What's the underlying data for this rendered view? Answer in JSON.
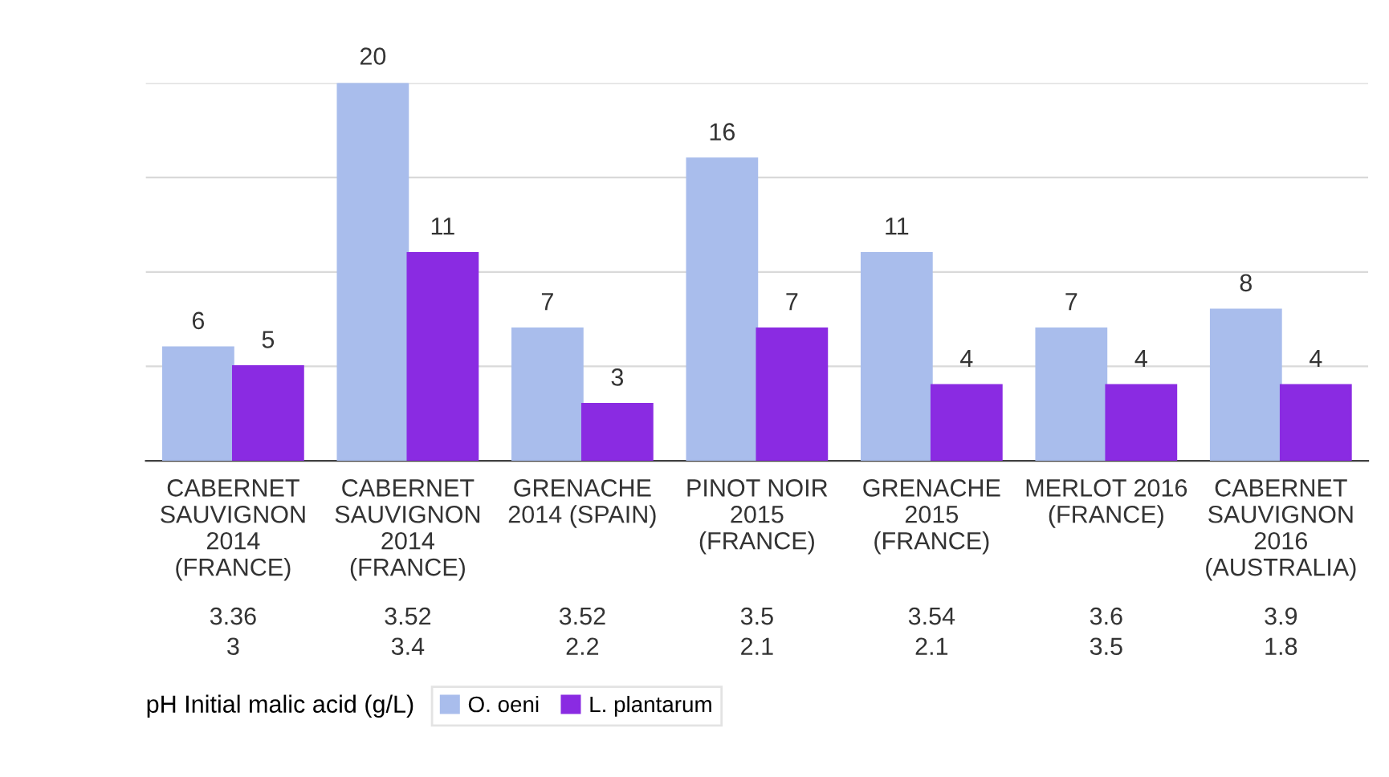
{
  "chart_data": {
    "type": "bar",
    "categories": [
      "CABERNET\nSAUVIGNON\n2014\n(FRANCE)",
      "CABERNET\nSAUVIGNON\n2014\n(FRANCE)",
      "GRENACHE\n2014 (SPAIN)",
      "PINOT NOIR\n2015\n(FRANCE)",
      "GRENACHE\n2015\n(FRANCE)",
      "MERLOT 2016\n(FRANCE)",
      "CABERNET\nSAUVIGNON\n2016\n(AUSTRALIA)"
    ],
    "series": [
      {
        "name": "O. oeni",
        "color": "#a9bdec",
        "values": [
          6,
          20,
          7,
          16,
          11,
          7,
          8
        ]
      },
      {
        "name": "L. plantarum",
        "color": "#8a2be2",
        "values": [
          5,
          11,
          3,
          7,
          4,
          4,
          4
        ]
      }
    ],
    "ylim": [
      0,
      20
    ],
    "yticks": [
      {
        "value": 0,
        "label": null
      },
      {
        "value": 5,
        "label": null
      },
      {
        "value": 10,
        "label": null
      },
      {
        "value": 15,
        "label": null
      },
      {
        "value": 20,
        "label": null
      }
    ],
    "tick_labels": "x",
    "grid": "y",
    "data_labels": true,
    "legend": "bottom left",
    "annotations": [
      "pH Initial malic acid (g/L)",
      "3.36",
      "3.52",
      "3.52",
      "3.5",
      "3.54",
      "3.6",
      "3.9",
      "3",
      "3.4",
      "2.2",
      "2.1",
      "2.1",
      "3.5",
      "1.8"
    ]
  }
}
